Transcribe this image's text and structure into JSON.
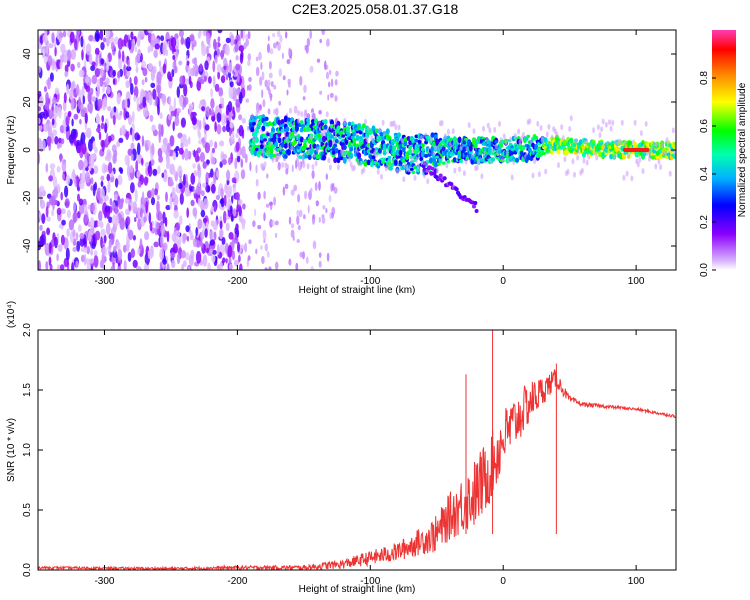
{
  "figure": {
    "title": "C2E3.2025.058.01.37.G18"
  },
  "chart_data": [
    {
      "type": "heatmap",
      "title": "C2E3.2025.058.01.37.G18",
      "xlabel": "Height of straight line (km)",
      "ylabel": "Frequency (Hz)",
      "xlim": [
        -350,
        130
      ],
      "ylim": [
        -50,
        50
      ],
      "x_ticks": [
        -300,
        -200,
        -100,
        0,
        100
      ],
      "y_ticks": [
        -40,
        -20,
        0,
        20,
        40
      ],
      "colorbar": {
        "label": "Normalized spectral amplitude",
        "range": [
          0.0,
          1.0
        ],
        "ticks": [
          0.0,
          0.2,
          0.4,
          0.6,
          0.8
        ],
        "tick_labels": [
          "0.0",
          "0.2",
          "0.4",
          "0.6",
          "0.8"
        ],
        "colormap": [
          "#ffffff",
          "#b070ff",
          "#6a00e8",
          "#0000ff",
          "#00c8ff",
          "#00ff40",
          "#ffff00",
          "#ff8000",
          "#ff0000",
          "#ff60c0"
        ]
      },
      "features": {
        "scattered_noise_region": [
          -350,
          -195
        ],
        "sparse_noise_region": [
          -195,
          -125
        ],
        "signal_band_start": -190,
        "signal_band_center_hz": [
          [
            -190,
            6
          ],
          [
            -160,
            5
          ],
          [
            -130,
            4
          ],
          [
            -100,
            2
          ],
          [
            -80,
            -1
          ],
          [
            -60,
            -2
          ],
          [
            -40,
            0
          ],
          [
            -20,
            0
          ],
          [
            0,
            0
          ],
          [
            20,
            1
          ],
          [
            40,
            2
          ],
          [
            60,
            1
          ],
          [
            80,
            0
          ],
          [
            100,
            0
          ],
          [
            130,
            0
          ]
        ],
        "strong_tone": {
          "x": [
            90,
            110
          ],
          "freq_hz": 0
        }
      }
    },
    {
      "type": "line",
      "xlabel": "Height of straight line (km)",
      "ylabel": "SNR (10 * v/v)",
      "y_multiplier_label": "(x10⁴)",
      "xlim": [
        -350,
        130
      ],
      "ylim": [
        0,
        2.0
      ],
      "x_ticks": [
        -300,
        -200,
        -100,
        0,
        100
      ],
      "y_ticks": [
        0.0,
        0.5,
        1.0,
        1.5,
        2.0
      ],
      "y_tick_labels": [
        "0.0",
        "0.5",
        "1.0",
        "1.5",
        "2.0"
      ],
      "line_color": "#ee3333",
      "series": [
        {
          "x": [
            -350,
            -300,
            -250,
            -200,
            -150,
            -120,
            -100,
            -80,
            -60,
            -50,
            -40,
            -30,
            -20,
            -12,
            -5,
            0,
            10,
            20,
            30,
            35,
            40,
            45,
            50,
            60,
            70,
            80,
            100,
            120,
            130
          ],
          "values": [
            0.02,
            0.015,
            0.012,
            0.02,
            0.02,
            0.05,
            0.1,
            0.15,
            0.25,
            0.3,
            0.45,
            0.55,
            0.65,
            0.8,
            0.95,
            1.1,
            1.25,
            1.4,
            1.5,
            1.55,
            1.6,
            1.5,
            1.42,
            1.38,
            1.37,
            1.36,
            1.34,
            1.3,
            1.28
          ],
          "noise_amplitude": [
            0.01,
            0.01,
            0.01,
            0.015,
            0.02,
            0.04,
            0.06,
            0.08,
            0.12,
            0.16,
            0.2,
            0.25,
            0.3,
            0.3,
            0.28,
            0.25,
            0.22,
            0.18,
            0.12,
            0.1,
            0.08,
            0.05,
            0.03,
            0.02,
            0.015,
            0.015,
            0.012,
            0.012,
            0.012
          ]
        }
      ],
      "spikes": [
        {
          "x": -28,
          "y": 1.63
        },
        {
          "x": -8,
          "y": 2.0
        },
        {
          "x": 40,
          "y": 1.72
        }
      ]
    }
  ]
}
